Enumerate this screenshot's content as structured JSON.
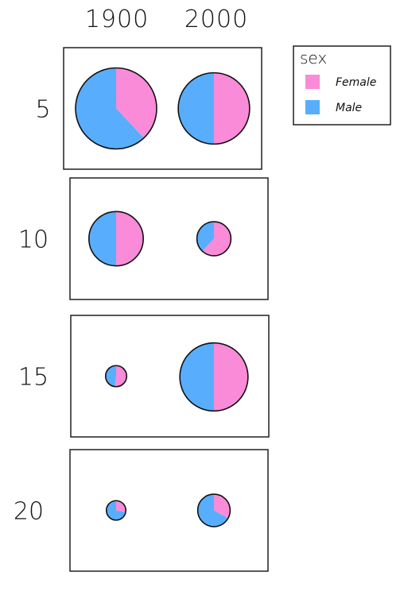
{
  "chart_data": {
    "type": "pie",
    "facet_row_labels": [
      "5",
      "10",
      "15",
      "20"
    ],
    "facet_col_labels": [
      "1900",
      "2000"
    ],
    "legend": {
      "title": "sex",
      "placement": "top-right",
      "entries": [
        {
          "name": "Female",
          "color": "#F98BD8"
        },
        {
          "name": "Male",
          "color": "#58AEFC"
        }
      ]
    },
    "cells": [
      {
        "row": "5",
        "col": "1900",
        "size": 1.0,
        "female_share": 0.38,
        "male_share": 0.62
      },
      {
        "row": "5",
        "col": "2000",
        "size": 0.88,
        "female_share": 0.5,
        "male_share": 0.5
      },
      {
        "row": "10",
        "col": "1900",
        "size": 0.67,
        "female_share": 0.5,
        "male_share": 0.5
      },
      {
        "row": "10",
        "col": "2000",
        "size": 0.42,
        "female_share": 0.62,
        "male_share": 0.38
      },
      {
        "row": "15",
        "col": "1900",
        "size": 0.26,
        "female_share": 0.52,
        "male_share": 0.48
      },
      {
        "row": "15",
        "col": "2000",
        "size": 0.84,
        "female_share": 0.5,
        "male_share": 0.5
      },
      {
        "row": "20",
        "col": "1900",
        "size": 0.24,
        "female_share": 0.28,
        "male_share": 0.72
      },
      {
        "row": "20",
        "col": "2000",
        "size": 0.4,
        "female_share": 0.33,
        "male_share": 0.67
      }
    ]
  }
}
